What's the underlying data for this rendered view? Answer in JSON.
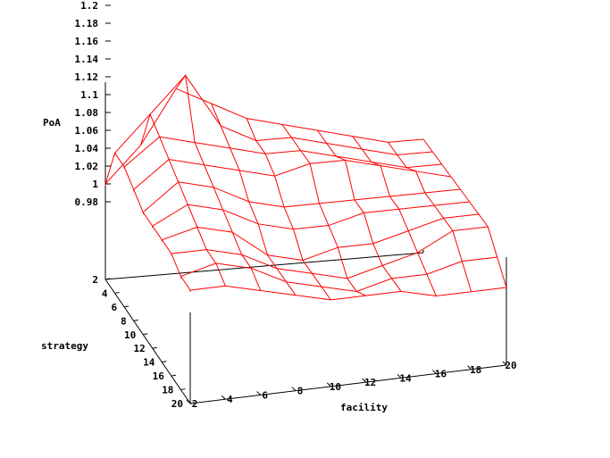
{
  "chart_data": {
    "type": "surface",
    "zlabel": "PoA",
    "xlabel": "facility",
    "ylabel": "strategy",
    "x": [
      2,
      4,
      6,
      8,
      10,
      12,
      14,
      16,
      18,
      20
    ],
    "y": [
      2,
      4,
      6,
      8,
      10,
      12,
      14,
      16,
      18,
      20
    ],
    "zlim": [
      0.98,
      1.2
    ],
    "z_ticks": [
      "0.98",
      "1",
      "1.02",
      "1.04",
      "1.06",
      "1.08",
      "1.1",
      "1.12",
      "1.14",
      "1.16",
      "1.18",
      "1.2"
    ],
    "x_ticks": [
      "2",
      "4",
      "6",
      "8",
      "10",
      "12",
      "14",
      "16",
      "18",
      "20"
    ],
    "y_ticks": [
      "2",
      "4",
      "6",
      "8",
      "10",
      "12",
      "14",
      "16",
      "18",
      "20"
    ],
    "z_rows_by_strategy": [
      [
        1.0,
        1.04,
        1.1,
        1.08,
        1.06,
        1.05,
        1.04,
        1.03,
        1.02,
        1.02
      ],
      [
        1.05,
        1.09,
        1.13,
        1.07,
        1.05,
        1.05,
        1.04,
        1.03,
        1.02,
        1.02
      ],
      [
        1.05,
        1.08,
        1.07,
        1.06,
        1.05,
        1.05,
        1.04,
        1.03,
        1.02,
        1.02
      ],
      [
        1.04,
        1.07,
        1.06,
        1.05,
        1.04,
        1.05,
        1.05,
        1.04,
        1.03,
        1.02
      ],
      [
        1.03,
        1.06,
        1.05,
        1.03,
        1.02,
        1.02,
        1.02,
        1.02,
        1.02,
        1.02
      ],
      [
        1.03,
        1.05,
        1.04,
        1.02,
        1.01,
        1.01,
        1.02,
        1.02,
        1.02,
        1.02
      ],
      [
        1.03,
        1.04,
        1.03,
        1.0,
        0.99,
        1.0,
        1.0,
        1.01,
        1.02,
        1.02
      ],
      [
        1.03,
        1.03,
        1.02,
        1.0,
        0.99,
        0.98,
        0.99,
        1.0,
        1.02,
        1.02
      ],
      [
        1.02,
        1.03,
        1.02,
        1.0,
        0.99,
        0.98,
        0.99,
        0.99,
        1.0,
        1.0
      ],
      [
        1.02,
        1.02,
        1.01,
        1.0,
        0.99,
        0.99,
        0.99,
        0.98,
        0.98,
        0.98
      ]
    ],
    "color": "#ff0000",
    "grid": false
  }
}
